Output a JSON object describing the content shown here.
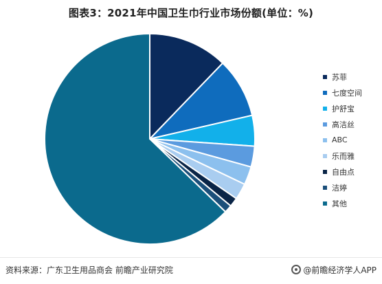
{
  "title": "图表3：2021年中国卫生巾行业市场份额(单位：%)",
  "footer": {
    "source": "资料来源：广东卫生用品商会 前瞻产业研究院",
    "brand": "@前瞻经济学人APP"
  },
  "colors": {
    "su_fei": "#0a2a5c",
    "qi_du_kong_jian": "#0f6cbd",
    "hu_shu_bao": "#12b0ea",
    "gao_jie_si": "#5b9bdf",
    "abc": "#8cc0ee",
    "le_er_ya": "#a9cdf0",
    "zi_you_dian": "#0a2547",
    "jie_ting": "#1b4f7a",
    "qi_ta": "#0b6a8d"
  },
  "chart_data": {
    "type": "pie",
    "title": "图表3：2021年中国卫生巾行业市场份额(单位：%)",
    "start_angle_deg": 0,
    "direction": "clockwise",
    "legend_position": "right",
    "data_labels": false,
    "series": [
      {
        "name": "苏菲",
        "value": 12.2,
        "color": "#0a2a5c"
      },
      {
        "name": "七度空间",
        "value": 9.2,
        "color": "#0f6cbd"
      },
      {
        "name": "护舒宝",
        "value": 4.7,
        "color": "#12b0ea"
      },
      {
        "name": "高洁丝",
        "value": 3.2,
        "color": "#5b9bdf"
      },
      {
        "name": "ABC",
        "value": 2.8,
        "color": "#8cc0ee"
      },
      {
        "name": "乐而雅",
        "value": 2.5,
        "color": "#a9cdf0"
      },
      {
        "name": "自由点",
        "value": 1.4,
        "color": "#0a2547"
      },
      {
        "name": "洁婷",
        "value": 1.2,
        "color": "#1b4f7a"
      },
      {
        "name": "其他",
        "value": 62.8,
        "color": "#0b6a8d"
      }
    ]
  }
}
